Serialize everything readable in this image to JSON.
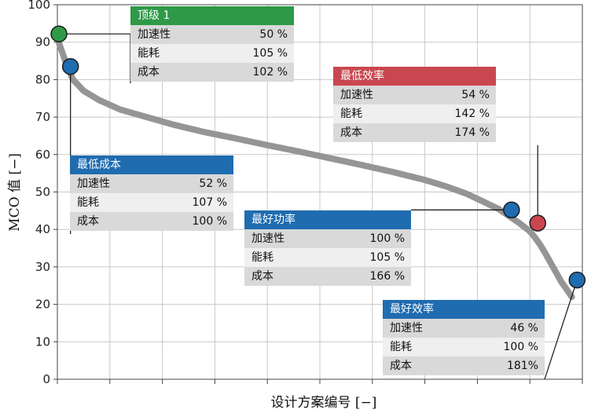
{
  "chart_data": {
    "type": "scatter",
    "title": "",
    "xlabel": "设计方案编号 [−]",
    "ylabel": "MCO 值 [−]",
    "xlim": [
      0,
      100
    ],
    "ylim": [
      0,
      100
    ],
    "y_ticks": [
      0,
      10,
      20,
      30,
      40,
      50,
      60,
      70,
      80,
      90,
      100
    ],
    "x_tick_count": 11,
    "x_tick_labels_shown": false,
    "grid": true,
    "curve": {
      "x": [
        0,
        1,
        2,
        3,
        5,
        8,
        12,
        17,
        22,
        28,
        34,
        40,
        46,
        52,
        58,
        64,
        70,
        74,
        78,
        81,
        84,
        86,
        88,
        90,
        91,
        92,
        93,
        94,
        95,
        96,
        97,
        98
      ],
      "y": [
        91,
        87,
        83,
        80,
        77,
        74.5,
        72,
        70,
        68,
        66,
        64.3,
        62.5,
        60.8,
        59,
        57.2,
        55.3,
        53.2,
        51.5,
        49.5,
        47.5,
        45.5,
        43.6,
        41.7,
        39.5,
        37.8,
        35.8,
        33.5,
        31,
        28.5,
        26,
        24,
        22
      ]
    },
    "highlights": [
      {
        "name": "顶级 1",
        "x": 0.3,
        "y": 92.2,
        "color": "#2e9a47"
      },
      {
        "name": "最低成本",
        "x": 2.5,
        "y": 83.5,
        "color": "#1f6cb0"
      },
      {
        "name": "最好功率",
        "x": 86.5,
        "y": 45.2,
        "color": "#1f6cb0"
      },
      {
        "name": "最低效率",
        "x": 91.5,
        "y": 41.7,
        "color": "#c9474f"
      },
      {
        "name": "最好效率",
        "x": 99,
        "y": 26.5,
        "color": "#1f6cb0"
      }
    ]
  },
  "boxes": [
    {
      "title": "顶级 1",
      "color": "#2e9a47",
      "rows": [
        {
          "label": "加速性",
          "value": "50 %"
        },
        {
          "label": "能耗",
          "value": "105 %"
        },
        {
          "label": "成本",
          "value": "102 %"
        }
      ]
    },
    {
      "title": "最低效率",
      "color": "#c9474f",
      "rows": [
        {
          "label": "加速性",
          "value": "54 %"
        },
        {
          "label": "能耗",
          "value": "142 %"
        },
        {
          "label": "成本",
          "value": "174 %"
        }
      ]
    },
    {
      "title": "最低成本",
      "color": "#1f6cb0",
      "rows": [
        {
          "label": "加速性",
          "value": "52 %"
        },
        {
          "label": "能耗",
          "value": "107 %"
        },
        {
          "label": "成本",
          "value": "100 %"
        }
      ]
    },
    {
      "title": "最好功率",
      "color": "#1f6cb0",
      "rows": [
        {
          "label": "加速性",
          "value": "100 %"
        },
        {
          "label": "能耗",
          "value": "105 %"
        },
        {
          "label": "成本",
          "value": "166 %"
        }
      ]
    },
    {
      "title": "最好效率",
      "color": "#1f6cb0",
      "rows": [
        {
          "label": "加速性",
          "value": "46 %"
        },
        {
          "label": "能耗",
          "value": "100 %"
        },
        {
          "label": "成本",
          "value": "181%"
        }
      ]
    }
  ]
}
